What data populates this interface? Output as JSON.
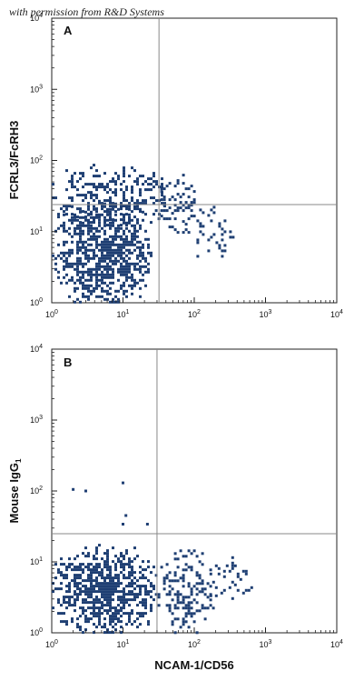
{
  "watermark": "with permission from R&D Systems",
  "colors": {
    "dots": "#1f3f73",
    "gate_line": "#888888",
    "axis": "#222222"
  },
  "chart_data": [
    {
      "type": "scatter",
      "panel": "A",
      "xlabel": "",
      "ylabel": "FCRL3/FcRH3",
      "xscale": "log",
      "yscale": "log",
      "xlim": [
        1,
        10000
      ],
      "ylim": [
        1,
        10000
      ],
      "x_ticks": [
        {
          "value": 1,
          "base": "10",
          "exp": "0"
        },
        {
          "value": 10,
          "base": "10",
          "exp": "1"
        },
        {
          "value": 100,
          "base": "10",
          "exp": "2"
        },
        {
          "value": 1000,
          "base": "10",
          "exp": "3"
        },
        {
          "value": 10000,
          "base": "10",
          "exp": "4"
        }
      ],
      "y_ticks": [
        {
          "value": 1,
          "base": "10",
          "exp": "0"
        },
        {
          "value": 10,
          "base": "10",
          "exp": "1"
        },
        {
          "value": 100,
          "base": "10",
          "exp": "2"
        },
        {
          "value": 1000,
          "base": "10",
          "exp": "3"
        },
        {
          "value": 10000,
          "base": "10",
          "exp": "4"
        }
      ],
      "quadrant_gate": {
        "x": 32,
        "y": 24
      },
      "populations": [
        {
          "x_range": [
            1,
            25
          ],
          "y_range": [
            1,
            28
          ],
          "density": "high"
        },
        {
          "x_range": [
            1,
            45
          ],
          "y_range": [
            12,
            90
          ],
          "density": "medium"
        },
        {
          "x_range": [
            28,
            110
          ],
          "y_range": [
            10,
            65
          ],
          "density": "medium"
        },
        {
          "x_range": [
            90,
            400
          ],
          "y_range": [
            4,
            30
          ],
          "density": "low"
        }
      ]
    },
    {
      "type": "scatter",
      "panel": "B",
      "xlabel": "NCAM-1/CD56",
      "ylabel": "Mouse IgG",
      "ylabel_subscript": "1",
      "xscale": "log",
      "yscale": "log",
      "xlim": [
        1,
        10000
      ],
      "ylim": [
        1,
        10000
      ],
      "x_ticks": [
        {
          "value": 1,
          "base": "10",
          "exp": "0"
        },
        {
          "value": 10,
          "base": "10",
          "exp": "1"
        },
        {
          "value": 100,
          "base": "10",
          "exp": "2"
        },
        {
          "value": 1000,
          "base": "10",
          "exp": "3"
        },
        {
          "value": 10000,
          "base": "10",
          "exp": "4"
        }
      ],
      "y_ticks": [
        {
          "value": 1,
          "base": "10",
          "exp": "0"
        },
        {
          "value": 10,
          "base": "10",
          "exp": "1"
        },
        {
          "value": 100,
          "base": "10",
          "exp": "2"
        },
        {
          "value": 1000,
          "base": "10",
          "exp": "3"
        },
        {
          "value": 10000,
          "base": "10",
          "exp": "4"
        }
      ],
      "quadrant_gate": {
        "x": 30,
        "y": 25
      },
      "populations": [
        {
          "x_range": [
            1,
            28
          ],
          "y_range": [
            1,
            18
          ],
          "density": "high"
        },
        {
          "x_range": [
            28,
            180
          ],
          "y_range": [
            1,
            15
          ],
          "density": "medium"
        },
        {
          "x_range": [
            150,
            700
          ],
          "y_range": [
            2,
            12
          ],
          "density": "low"
        }
      ],
      "outlier_points": [
        {
          "x": 10,
          "y": 130
        },
        {
          "x": 2,
          "y": 105
        },
        {
          "x": 3,
          "y": 100
        },
        {
          "x": 11,
          "y": 45
        },
        {
          "x": 10,
          "y": 34
        },
        {
          "x": 22,
          "y": 34
        }
      ]
    }
  ]
}
